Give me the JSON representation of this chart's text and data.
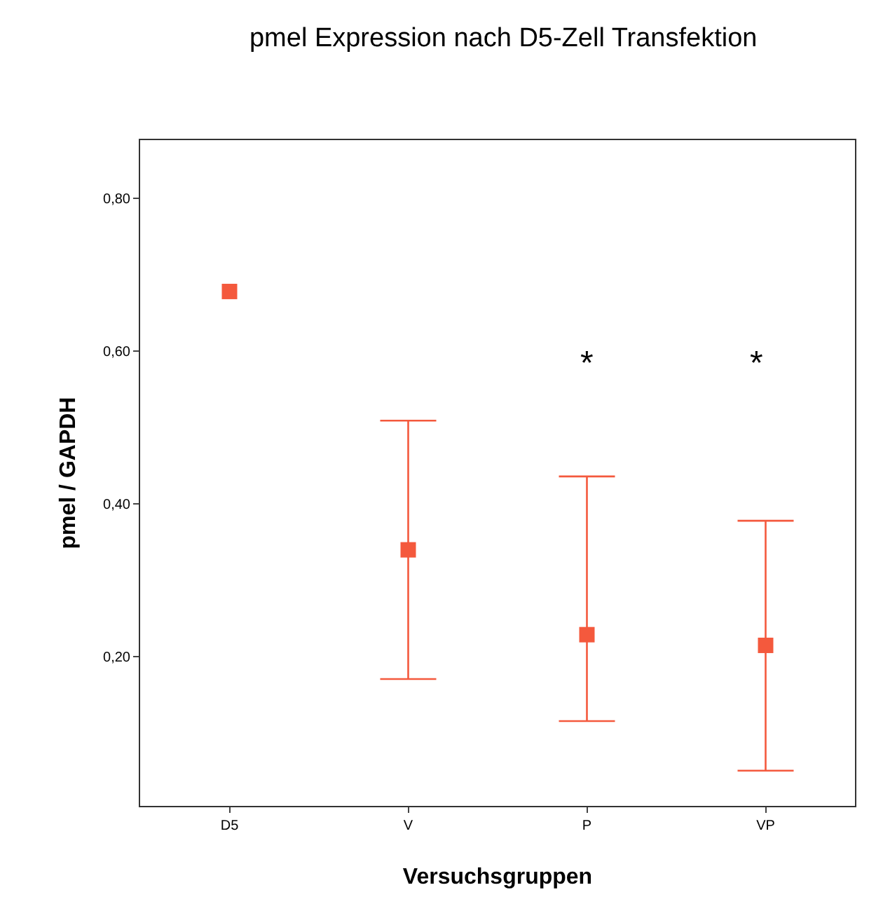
{
  "chart_data": {
    "type": "scatter",
    "title": "pmel Expression nach D5-Zell Transfektion",
    "xlabel": "Versuchsgruppen",
    "ylabel": "pmel / GAPDH",
    "categories": [
      "D5",
      "V",
      "P",
      "VP"
    ],
    "series": [
      {
        "color": "#f4593d",
        "values": [
          0.678,
          0.34,
          0.229,
          0.215
        ],
        "errors": [
          null,
          [
            0.171,
            0.509
          ],
          [
            0.116,
            0.436
          ],
          [
            0.051,
            0.378
          ]
        ]
      }
    ],
    "ylim": [
      0.005,
      0.876
    ],
    "yticks": [
      {
        "value": 0.2,
        "label": "0,20"
      },
      {
        "value": 0.4,
        "label": "0,40"
      },
      {
        "value": 0.6,
        "label": "0,60"
      },
      {
        "value": 0.8,
        "label": "0,80"
      }
    ],
    "annotations": [
      "*",
      "*"
    ],
    "marker": "square",
    "grid": false
  }
}
